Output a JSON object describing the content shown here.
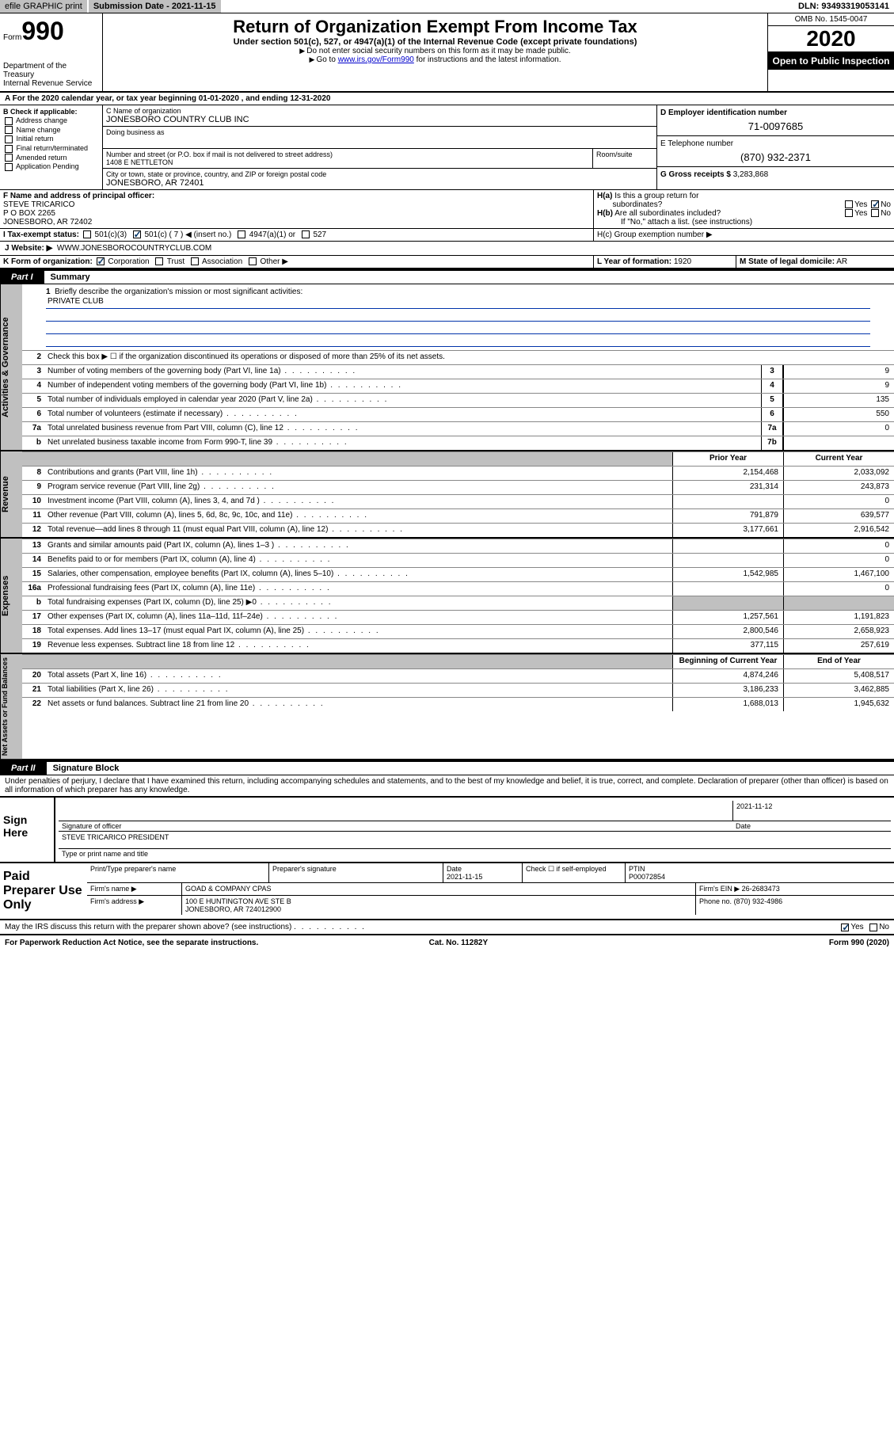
{
  "topbar": {
    "efile": "efile GRAPHIC print",
    "subdate_label": "Submission Date - 2021-11-15",
    "dln": "DLN: 93493319053141"
  },
  "header": {
    "form_label": "Form",
    "form_num": "990",
    "dept": "Department of the Treasury",
    "irs": "Internal Revenue Service",
    "title": "Return of Organization Exempt From Income Tax",
    "sub": "Under section 501(c), 527, or 4947(a)(1) of the Internal Revenue Code (except private foundations)",
    "note1": "Do not enter social security numbers on this form as it may be made public.",
    "note2_pre": "Go to ",
    "note2_link": "www.irs.gov/Form990",
    "note2_post": " for instructions and the latest information.",
    "omb": "OMB No. 1545-0047",
    "year": "2020",
    "open": "Open to Public Inspection"
  },
  "row_a": "A For the 2020 calendar year, or tax year beginning 01-01-2020    , and ending 12-31-2020",
  "b": {
    "label": "B Check if applicable:",
    "opts": [
      "Address change",
      "Name change",
      "Initial return",
      "Final return/terminated",
      "Amended return",
      "Application Pending"
    ]
  },
  "c": {
    "name_label": "C Name of organization",
    "name": "JONESBORO COUNTRY CLUB INC",
    "dba_label": "Doing business as",
    "street_label": "Number and street (or P.O. box if mail is not delivered to street address)",
    "room_label": "Room/suite",
    "street": "1408 E NETTLETON",
    "city_label": "City or town, state or province, country, and ZIP or foreign postal code",
    "city": "JONESBORO, AR  72401"
  },
  "d": {
    "label": "D Employer identification number",
    "val": "71-0097685"
  },
  "e": {
    "label": "E Telephone number",
    "val": "(870) 932-2371"
  },
  "g": {
    "label": "G Gross receipts $",
    "val": "3,283,868"
  },
  "f": {
    "label": "F Name and address of principal officer:",
    "name": "STEVE TRICARICO",
    "addr1": "P O BOX 2265",
    "addr2": "JONESBORO, AR  72402"
  },
  "h": {
    "a": "H(a)  Is this a group return for subordinates?",
    "b": "H(b)  Are all subordinates included?",
    "b_note": "If \"No,\" attach a list. (see instructions)",
    "c": "H(c)  Group exemption number ▶"
  },
  "i": {
    "label": "I Tax-exempt status:",
    "o1": "501(c)(3)",
    "o2_pre": "501(c) ( ",
    "o2_val": "7",
    "o2_post": " ) ◀ (insert no.)",
    "o3": "4947(a)(1) or",
    "o4": "527"
  },
  "j": {
    "label": "J Website: ▶",
    "val": "WWW.JONESBOROCOUNTRYCLUB.COM"
  },
  "k": {
    "label": "K Form of organization:",
    "opts": [
      "Corporation",
      "Trust",
      "Association",
      "Other ▶"
    ]
  },
  "l": {
    "label": "L Year of formation:",
    "val": "1920"
  },
  "m": {
    "label": "M State of legal domicile:",
    "val": "AR"
  },
  "part1": {
    "tab": "Part I",
    "title": "Summary"
  },
  "summary": {
    "q1": "Briefly describe the organization's mission or most significant activities:",
    "mission": "PRIVATE CLUB",
    "q2": "Check this box ▶ ☐  if the organization discontinued its operations or disposed of more than 25% of its net assets.",
    "lines": [
      {
        "n": "3",
        "d": "Number of voting members of the governing body (Part VI, line 1a)",
        "c": "3",
        "v": "9"
      },
      {
        "n": "4",
        "d": "Number of independent voting members of the governing body (Part VI, line 1b)",
        "c": "4",
        "v": "9"
      },
      {
        "n": "5",
        "d": "Total number of individuals employed in calendar year 2020 (Part V, line 2a)",
        "c": "5",
        "v": "135"
      },
      {
        "n": "6",
        "d": "Total number of volunteers (estimate if necessary)",
        "c": "6",
        "v": "550"
      },
      {
        "n": "7a",
        "d": "Total unrelated business revenue from Part VIII, column (C), line 12",
        "c": "7a",
        "v": "0"
      },
      {
        "n": "b",
        "d": "Net unrelated business taxable income from Form 990-T, line 39",
        "c": "7b",
        "v": ""
      }
    ],
    "hdr_prior": "Prior Year",
    "hdr_curr": "Current Year",
    "rev": [
      {
        "n": "8",
        "d": "Contributions and grants (Part VIII, line 1h)",
        "p": "2,154,468",
        "c": "2,033,092"
      },
      {
        "n": "9",
        "d": "Program service revenue (Part VIII, line 2g)",
        "p": "231,314",
        "c": "243,873"
      },
      {
        "n": "10",
        "d": "Investment income (Part VIII, column (A), lines 3, 4, and 7d )",
        "p": "",
        "c": "0"
      },
      {
        "n": "11",
        "d": "Other revenue (Part VIII, column (A), lines 5, 6d, 8c, 9c, 10c, and 11e)",
        "p": "791,879",
        "c": "639,577"
      },
      {
        "n": "12",
        "d": "Total revenue—add lines 8 through 11 (must equal Part VIII, column (A), line 12)",
        "p": "3,177,661",
        "c": "2,916,542"
      }
    ],
    "exp": [
      {
        "n": "13",
        "d": "Grants and similar amounts paid (Part IX, column (A), lines 1–3 )",
        "p": "",
        "c": "0"
      },
      {
        "n": "14",
        "d": "Benefits paid to or for members (Part IX, column (A), line 4)",
        "p": "",
        "c": "0"
      },
      {
        "n": "15",
        "d": "Salaries, other compensation, employee benefits (Part IX, column (A), lines 5–10)",
        "p": "1,542,985",
        "c": "1,467,100"
      },
      {
        "n": "16a",
        "d": "Professional fundraising fees (Part IX, column (A), line 11e)",
        "p": "",
        "c": "0"
      },
      {
        "n": "b",
        "d": "Total fundraising expenses (Part IX, column (D), line 25) ▶0",
        "p": "shade",
        "c": "shade"
      },
      {
        "n": "17",
        "d": "Other expenses (Part IX, column (A), lines 11a–11d, 11f–24e)",
        "p": "1,257,561",
        "c": "1,191,823"
      },
      {
        "n": "18",
        "d": "Total expenses. Add lines 13–17 (must equal Part IX, column (A), line 25)",
        "p": "2,800,546",
        "c": "2,658,923"
      },
      {
        "n": "19",
        "d": "Revenue less expenses. Subtract line 18 from line 12",
        "p": "377,115",
        "c": "257,619"
      }
    ],
    "hdr_begin": "Beginning of Current Year",
    "hdr_end": "End of Year",
    "net": [
      {
        "n": "20",
        "d": "Total assets (Part X, line 16)",
        "p": "4,874,246",
        "c": "5,408,517"
      },
      {
        "n": "21",
        "d": "Total liabilities (Part X, line 26)",
        "p": "3,186,233",
        "c": "3,462,885"
      },
      {
        "n": "22",
        "d": "Net assets or fund balances. Subtract line 21 from line 20",
        "p": "1,688,013",
        "c": "1,945,632"
      }
    ]
  },
  "sidetabs": {
    "gov": "Activities & Governance",
    "rev": "Revenue",
    "exp": "Expenses",
    "net": "Net Assets or Fund Balances"
  },
  "part2": {
    "tab": "Part II",
    "title": "Signature Block"
  },
  "penal": "Under penalties of perjury, I declare that I have examined this return, including accompanying schedules and statements, and to the best of my knowledge and belief, it is true, correct, and complete. Declaration of preparer (other than officer) is based on all information of which preparer has any knowledge.",
  "sign": {
    "label": "Sign Here",
    "sig_of": "Signature of officer",
    "date": "2021-11-12",
    "date_lbl": "Date",
    "name": "STEVE TRICARICO PRESIDENT",
    "name_lbl": "Type or print name and title"
  },
  "prep": {
    "label": "Paid Preparer Use Only",
    "h1": "Print/Type preparer's name",
    "h2": "Preparer's signature",
    "h3": "Date",
    "date": "2021-11-15",
    "h4": "Check ☐ if self-employed",
    "h5": "PTIN",
    "ptin": "P00072854",
    "firm_lbl": "Firm's name    ▶",
    "firm": "GOAD & COMPANY CPAS",
    "ein_lbl": "Firm's EIN ▶",
    "ein": "26-2683473",
    "addr_lbl": "Firm's address ▶",
    "addr1": "100 E HUNTINGTON AVE STE B",
    "addr2": "JONESBORO, AR  724012900",
    "phone_lbl": "Phone no.",
    "phone": "(870) 932-4986"
  },
  "discuss": "May the IRS discuss this return with the preparer shown above? (see instructions)",
  "foot": {
    "l": "For Paperwork Reduction Act Notice, see the separate instructions.",
    "m": "Cat. No. 11282Y",
    "r": "Form 990 (2020)"
  }
}
